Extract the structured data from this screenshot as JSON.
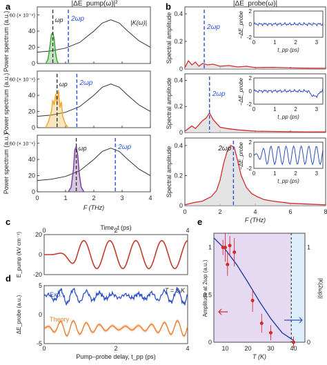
{
  "panel_labels": {
    "a": "a",
    "b": "b",
    "c": "c",
    "d": "d",
    "e": "e"
  },
  "colors": {
    "green": "#3aa935",
    "orange": "#f0a830",
    "purple": "#7b3fa0",
    "blue": "#2b4fc4",
    "red": "#d42a2a",
    "dashed_blue": "#2750d8",
    "theory": "#f07a2a",
    "shade": "#d9d9d9"
  },
  "chart_data": [
    {
      "id": "a",
      "type": "line",
      "title": "|ΔE_pump(ω)|²",
      "xlabel": "F (THz)",
      "ylabel": "Power spectrum (a.u.)",
      "xlim": [
        0,
        4
      ],
      "xticks": [
        0,
        1,
        2,
        3,
        4
      ],
      "ylim": [
        0,
        70
      ],
      "yticks": [
        0,
        20,
        40,
        60
      ],
      "ytick_labels": [
        "0",
        "20",
        "40",
        "60 (× 10⁻⁶)"
      ],
      "subpanels": [
        {
          "pump_color": "green",
          "omega_p_label": "ωp",
          "two_omega_p_label": "2ωp",
          "omega_p": 0.55,
          "two_omega_p": 1.1,
          "K_label": "|K(ω)|",
          "K_curve": {
            "x": [
              0,
              0.5,
              1.0,
              1.5,
              2.0,
              2.3,
              2.6,
              2.9,
              3.2,
              3.6,
              4.0
            ],
            "y": [
              14,
              15.5,
              19,
              26,
              40,
              50,
              54,
              50,
              40,
              28,
              20
            ]
          },
          "pump": {
            "x": [
              0.3,
              0.38,
              0.45,
              0.5,
              0.55,
              0.6,
              0.65,
              0.7,
              0.75
            ],
            "y": [
              0,
              5,
              22,
              36,
              38,
              30,
              12,
              3,
              0
            ]
          }
        },
        {
          "pump_color": "orange",
          "omega_p_label": "ωp",
          "two_omega_p_label": "2ωp",
          "omega_p": 0.7,
          "two_omega_p": 1.4,
          "K_curve": {
            "x": [
              0,
              0.5,
              1.0,
              1.5,
              2.0,
              2.3,
              2.6,
              2.9,
              3.2,
              3.6,
              4.0
            ],
            "y": [
              14,
              15.5,
              19,
              26,
              40,
              50,
              54,
              50,
              40,
              28,
              20
            ]
          },
          "pump": {
            "x": [
              0.3,
              0.4,
              0.5,
              0.55,
              0.6,
              0.65,
              0.7,
              0.75,
              0.8,
              0.85,
              0.9,
              1.0,
              1.1
            ],
            "y": [
              0,
              8,
              20,
              34,
              28,
              42,
              30,
              46,
              25,
              32,
              14,
              4,
              0
            ]
          }
        },
        {
          "pump_color": "purple",
          "omega_p_label": "ωp",
          "two_omega_p_label": "2ωp",
          "omega_p": 1.38,
          "two_omega_p": 2.76,
          "K_curve": {
            "x": [
              0,
              0.5,
              1.0,
              1.5,
              2.0,
              2.3,
              2.6,
              2.9,
              3.2,
              3.6,
              4.0
            ],
            "y": [
              14,
              15.5,
              19,
              26,
              40,
              50,
              54,
              50,
              40,
              28,
              20
            ]
          },
          "pump": {
            "x": [
              1.1,
              1.2,
              1.28,
              1.33,
              1.38,
              1.43,
              1.48,
              1.55,
              1.65
            ],
            "y": [
              0,
              6,
              28,
              52,
              56,
              46,
              24,
              6,
              0
            ]
          }
        }
      ]
    },
    {
      "id": "b",
      "type": "line",
      "title": "|ΔE_probe(ω)|",
      "xlabel": "F (THz)",
      "ylabel": "Spectral amplitude",
      "xlim": [
        0,
        8
      ],
      "xticks": [
        0,
        2,
        4,
        6,
        8
      ],
      "ylim": [
        0,
        0.45
      ],
      "yticks": [
        0,
        0.2,
        0.4
      ],
      "subpanels": [
        {
          "two_omega_p_label": "2ωp",
          "two_omega_p": 1.1,
          "spectrum": {
            "x": [
              0,
              0.2,
              0.4,
              0.6,
              0.8,
              1.0,
              1.3,
              1.6,
              2.0,
              2.5,
              3.0,
              3.5,
              4.0,
              5.0,
              6.0,
              7.0,
              8.0
            ],
            "y": [
              0.01,
              0.06,
              0.03,
              0.05,
              0.02,
              0.04,
              0.03,
              0.035,
              0.02,
              0.025,
              0.015,
              0.02,
              0.01,
              0.012,
              0.008,
              0.006,
              0.005
            ]
          },
          "inset": {
            "ylabel": "−ΔE_probe",
            "xlabel": "t_pp (ps)",
            "xlim": [
              0,
              3.3
            ],
            "ylim": [
              -2,
              2
            ],
            "yticks": [
              -2,
              0,
              2
            ],
            "xticks": [
              0,
              1,
              2,
              3
            ]
          }
        },
        {
          "two_omega_p_label": "2ωp",
          "two_omega_p": 1.4,
          "spectrum": {
            "x": [
              0,
              0.2,
              0.4,
              0.6,
              0.8,
              1.0,
              1.2,
              1.4,
              1.6,
              1.8,
              2.0,
              2.4,
              3.0,
              3.5,
              4.0,
              5.0,
              6.0,
              7.0,
              8.0
            ],
            "y": [
              0.01,
              0.03,
              0.05,
              0.03,
              0.06,
              0.09,
              0.11,
              0.15,
              0.1,
              0.07,
              0.04,
              0.03,
              0.02,
              0.015,
              0.01,
              0.008,
              0.006,
              0.005,
              0.004
            ]
          },
          "inset": {
            "ylabel": "−ΔE_probe",
            "xlabel": "t_pp (ps)",
            "xlim": [
              0,
              3.3
            ],
            "ylim": [
              -2,
              2
            ],
            "yticks": [
              -2,
              0,
              2
            ],
            "xticks": [
              0,
              1,
              2,
              3
            ]
          }
        },
        {
          "two_omega_p_label": "2ωp",
          "two_omega_p": 2.76,
          "spectrum": {
            "x": [
              0,
              0.5,
              1.0,
              1.5,
              1.8,
              2.0,
              2.2,
              2.4,
              2.6,
              2.8,
              3.0,
              3.2,
              3.5,
              3.8,
              4.1,
              4.5,
              5.0,
              6.0,
              7.0,
              8.0
            ],
            "y": [
              0.005,
              0.02,
              0.03,
              0.06,
              0.1,
              0.17,
              0.28,
              0.36,
              0.4,
              0.39,
              0.3,
              0.2,
              0.12,
              0.08,
              0.06,
              0.04,
              0.03,
              0.015,
              0.01,
              0.005
            ]
          },
          "inset": {
            "ylabel": "−ΔE_probe",
            "xlabel": "t_pp (ps)",
            "xlim": [
              0,
              3.3
            ],
            "ylim": [
              -2,
              2
            ],
            "yticks": [
              -2,
              0,
              2
            ],
            "xticks": [
              0,
              1,
              2,
              3
            ]
          }
        }
      ]
    },
    {
      "id": "c",
      "type": "line",
      "xlabel_top": "Time, t (ps)",
      "ylabel": "E_pump (kV cm⁻¹)",
      "xlim": [
        0,
        4
      ],
      "xticks": [
        0,
        2,
        4
      ],
      "ylim": [
        -20,
        20
      ],
      "yticks": [
        -20,
        0,
        20
      ],
      "series": [
        {
          "frequency_thz": 1.38,
          "amplitude": 14,
          "onset_ps": 0.9
        }
      ]
    },
    {
      "id": "d",
      "type": "line",
      "xlabel": "Pump–probe delay, t_pp (ps)",
      "ylabel": "ΔE_probe (a.u.)",
      "annotation": "T = 9 K",
      "xlim": [
        0,
        4
      ],
      "xticks": [
        0,
        2,
        4
      ],
      "ylim": [
        -5,
        5
      ],
      "yticks": [
        -5,
        0,
        5
      ],
      "series": [
        {
          "name": "Exp.",
          "offset": 3.2,
          "frequency_thz": 2.76,
          "amplitude": 1.5
        },
        {
          "name": "Theory",
          "offset": -2.3,
          "frequency_thz": 2.76,
          "amplitude": 1.6
        }
      ]
    },
    {
      "id": "e",
      "type": "scatter",
      "xlabel": "T (K)",
      "ylabel": "Amplitude at 2ωp (a.u.)",
      "ylabel_right": "|K(2ωp)|",
      "xlim": [
        5,
        45
      ],
      "xticks": [
        10,
        20,
        30,
        40
      ],
      "ylim": [
        0,
        1.15
      ],
      "yticks": [
        0,
        0.5,
        1
      ],
      "right_yticks": [
        0,
        1
      ],
      "Tc": 39,
      "points": {
        "x": [
          9,
          10,
          11,
          12,
          14,
          22,
          26,
          30,
          40
        ],
        "y": [
          1.0,
          1.0,
          0.82,
          1.02,
          0.95,
          0.44,
          0.2,
          0.1,
          0.0
        ],
        "err": [
          0.08,
          0.15,
          0.12,
          0.1,
          0.15,
          0.12,
          0.1,
          0.08,
          0.06
        ]
      },
      "fit": {
        "x": [
          5,
          10,
          15,
          20,
          25,
          30,
          35,
          40
        ],
        "y": [
          1.1,
          0.98,
          0.82,
          0.63,
          0.43,
          0.25,
          0.1,
          0.02
        ]
      }
    }
  ]
}
